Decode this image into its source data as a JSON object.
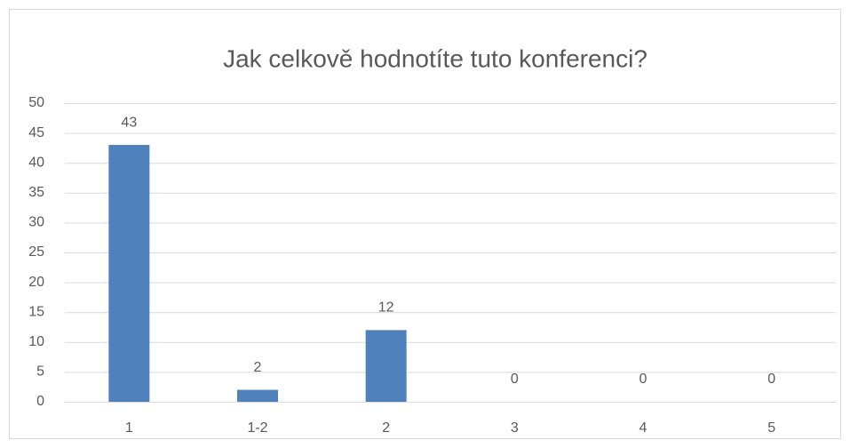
{
  "chart_data": {
    "type": "bar",
    "title": "Jak celkově hodnotíte tuto konferenci?",
    "categories": [
      "1",
      "1-2",
      "2",
      "3",
      "4",
      "5"
    ],
    "values": [
      43,
      2,
      12,
      0,
      0,
      0
    ],
    "color": "#4f81bd",
    "ylim": [
      0,
      50
    ],
    "yticks": [
      0,
      5,
      10,
      15,
      20,
      25,
      30,
      35,
      40,
      45,
      50
    ],
    "grid": true,
    "data_labels": true
  }
}
